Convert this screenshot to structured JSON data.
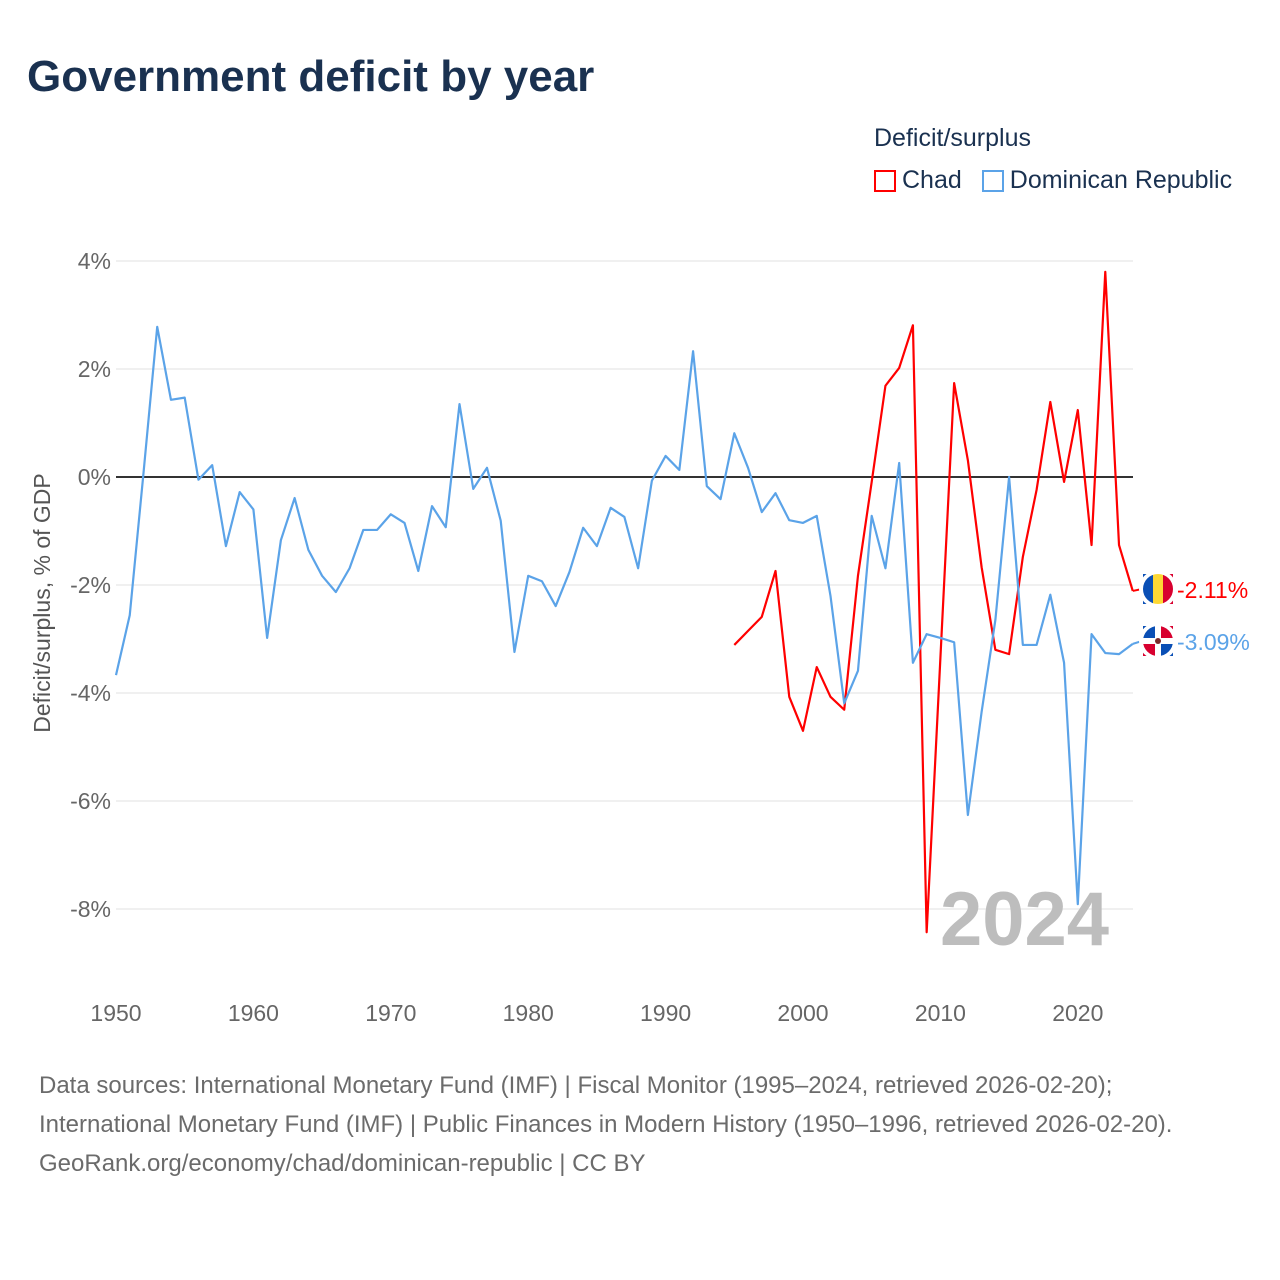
{
  "title": "Government deficit by year",
  "legend": {
    "title": "Deficit/surplus",
    "items": [
      {
        "label": "Chad",
        "color": "#ff0000"
      },
      {
        "label": "Dominican Republic",
        "color": "#5ba3e8"
      }
    ]
  },
  "watermark_year": "2024",
  "footer": {
    "sources": "Data sources: International Monetary Fund (IMF) | Fiscal Monitor (1995–2024, retrieved 2026-02-20); International Monetary Fund (IMF) | Public Finances in Modern History (1950–1996, retrieved 2026-02-20).",
    "credit": "GeoRank.org/economy/chad/dominican-republic | CC BY"
  },
  "chart_data": {
    "type": "line",
    "title": "Government deficit by year",
    "xlabel": "",
    "ylabel": "Deficit/surplus, % of GDP",
    "xlim": [
      1950,
      2024
    ],
    "ylim": [
      -9,
      4.3
    ],
    "xticks": [
      1950,
      1960,
      1970,
      1980,
      1990,
      2000,
      2010,
      2020
    ],
    "yticks": [
      4,
      2,
      0,
      -2,
      -4,
      -6,
      -8
    ],
    "ytick_labels": [
      "4%",
      "2%",
      "0%",
      "-2%",
      "-4%",
      "-6%",
      "-8%"
    ],
    "grid": true,
    "legend_position": "top-right",
    "series": [
      {
        "name": "Chad",
        "color": "#ff0000",
        "start_year": 1995,
        "end_label": "-2.11%",
        "values": [
          -3.11,
          -2.85,
          -2.59,
          -1.74,
          -4.07,
          -4.7,
          -3.52,
          -4.07,
          -4.31,
          -1.83,
          -0.09,
          1.69,
          2.02,
          2.81,
          -8.43,
          -3.35,
          1.74,
          0.31,
          -1.67,
          -3.2,
          -3.28,
          -1.48,
          -0.24,
          1.39,
          -0.09,
          1.24,
          -1.26,
          3.8,
          -1.26,
          -2.11
        ]
      },
      {
        "name": "Dominican Republic",
        "color": "#5ba3e8",
        "start_year": 1950,
        "end_label": "-3.09%",
        "values": [
          -3.67,
          -2.56,
          0.07,
          2.78,
          1.43,
          1.47,
          -0.05,
          0.22,
          -1.28,
          -0.28,
          -0.6,
          -2.98,
          -1.17,
          -0.39,
          -1.35,
          -1.83,
          -2.13,
          -1.69,
          -0.98,
          -0.98,
          -0.69,
          -0.85,
          -1.74,
          -0.54,
          -0.93,
          1.35,
          -0.22,
          0.17,
          -0.81,
          -3.24,
          -1.83,
          -1.93,
          -2.39,
          -1.76,
          -0.94,
          -1.28,
          -0.57,
          -0.74,
          -1.69,
          -0.07,
          0.39,
          0.13,
          2.33,
          -0.17,
          -0.41,
          0.81,
          0.17,
          -0.65,
          -0.3,
          -0.8,
          -0.85,
          -0.72,
          -2.2,
          -4.19,
          -3.59,
          -0.72,
          -1.69,
          0.26,
          -3.44,
          -2.91,
          -2.98,
          -3.06,
          -6.26,
          -4.35,
          -2.65,
          0.0,
          -3.11,
          -3.11,
          -2.18,
          -3.44,
          -7.91,
          -2.91,
          -3.26,
          -3.28,
          -3.09
        ]
      }
    ]
  }
}
